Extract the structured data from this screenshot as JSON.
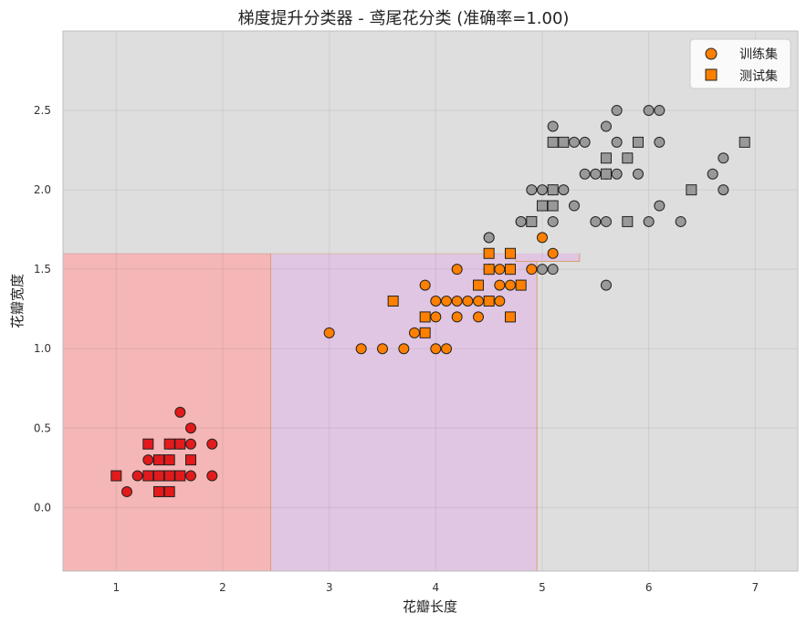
{
  "chart_data": {
    "type": "scatter",
    "title": "梯度提升分类器 - 鸢尾花分类 (准确率=1.00)",
    "xlabel": "花瓣长度",
    "ylabel": "花瓣宽度",
    "xlim": [
      0.5,
      7.4
    ],
    "ylim": [
      -0.4,
      3.0
    ],
    "xticks": [
      "1",
      "2",
      "3",
      "4",
      "5",
      "6",
      "7"
    ],
    "yticks": [
      "0.0",
      "0.5",
      "1.0",
      "1.5",
      "2.0",
      "2.5"
    ],
    "grid": true,
    "legend_position": "top-right",
    "legend": [
      {
        "label": "训练集",
        "marker": "circle"
      },
      {
        "label": "测试集",
        "marker": "square"
      }
    ],
    "class_colors": {
      "setosa": "#e31a1c",
      "versicolor": "#ff7f00",
      "virginica": "#999999"
    },
    "decision_regions": [
      {
        "class": "setosa",
        "x": [
          0.5,
          2.45
        ],
        "y": [
          -0.4,
          1.6
        ],
        "color": "#f4b6b6"
      },
      {
        "class": "versicolor",
        "x": [
          2.45,
          4.95
        ],
        "y": [
          -0.4,
          1.6
        ],
        "color": "#e0c6e2"
      },
      {
        "class": "versicolor",
        "x": [
          4.75,
          5.35
        ],
        "y": [
          1.55,
          1.75
        ],
        "color": "#e0c6e2"
      },
      {
        "class": "virginica",
        "x": [
          0.5,
          7.4
        ],
        "y": [
          1.6,
          3.0
        ],
        "color": "#dedede"
      }
    ],
    "series": [
      {
        "name": "训练集",
        "class": "setosa",
        "marker": "circle",
        "points": [
          [
            1.1,
            0.1
          ],
          [
            1.2,
            0.2
          ],
          [
            1.3,
            0.3
          ],
          [
            1.3,
            0.2
          ],
          [
            1.4,
            0.2
          ],
          [
            1.4,
            0.3
          ],
          [
            1.5,
            0.2
          ],
          [
            1.5,
            0.4
          ],
          [
            1.5,
            0.1
          ],
          [
            1.6,
            0.6
          ],
          [
            1.6,
            0.2
          ],
          [
            1.6,
            0.4
          ],
          [
            1.7,
            0.5
          ],
          [
            1.7,
            0.4
          ],
          [
            1.7,
            0.2
          ],
          [
            1.9,
            0.4
          ],
          [
            1.9,
            0.2
          ],
          [
            1.5,
            0.3
          ],
          [
            1.4,
            0.1
          ]
        ]
      },
      {
        "name": "测试集",
        "class": "setosa",
        "marker": "square",
        "points": [
          [
            1.0,
            0.2
          ],
          [
            1.3,
            0.4
          ],
          [
            1.3,
            0.2
          ],
          [
            1.4,
            0.1
          ],
          [
            1.4,
            0.3
          ],
          [
            1.4,
            0.2
          ],
          [
            1.5,
            0.4
          ],
          [
            1.5,
            0.1
          ],
          [
            1.5,
            0.2
          ],
          [
            1.5,
            0.3
          ],
          [
            1.6,
            0.4
          ],
          [
            1.6,
            0.2
          ],
          [
            1.7,
            0.3
          ]
        ]
      },
      {
        "name": "训练集",
        "class": "versicolor",
        "marker": "circle",
        "points": [
          [
            3.0,
            1.1
          ],
          [
            3.3,
            1.0
          ],
          [
            3.5,
            1.0
          ],
          [
            3.7,
            1.0
          ],
          [
            3.8,
            1.1
          ],
          [
            3.9,
            1.4
          ],
          [
            4.0,
            1.3
          ],
          [
            4.0,
            1.2
          ],
          [
            4.0,
            1.0
          ],
          [
            4.1,
            1.0
          ],
          [
            4.1,
            1.3
          ],
          [
            4.2,
            1.3
          ],
          [
            4.2,
            1.2
          ],
          [
            4.2,
            1.5
          ],
          [
            4.3,
            1.3
          ],
          [
            4.4,
            1.4
          ],
          [
            4.4,
            1.2
          ],
          [
            4.4,
            1.3
          ],
          [
            4.5,
            1.5
          ],
          [
            4.5,
            1.3
          ],
          [
            4.5,
            1.7
          ],
          [
            4.6,
            1.5
          ],
          [
            4.6,
            1.4
          ],
          [
            4.6,
            1.3
          ],
          [
            4.7,
            1.5
          ],
          [
            4.7,
            1.4
          ],
          [
            4.8,
            1.4
          ],
          [
            4.8,
            1.8
          ],
          [
            4.9,
            1.5
          ],
          [
            5.0,
            1.7
          ],
          [
            5.1,
            1.6
          ]
        ]
      },
      {
        "name": "测试集",
        "class": "versicolor",
        "marker": "square",
        "points": [
          [
            3.6,
            1.3
          ],
          [
            3.9,
            1.2
          ],
          [
            3.9,
            1.1
          ],
          [
            4.4,
            1.4
          ],
          [
            4.5,
            1.5
          ],
          [
            4.5,
            1.3
          ],
          [
            4.5,
            1.6
          ],
          [
            4.7,
            1.6
          ],
          [
            4.7,
            1.5
          ],
          [
            4.7,
            1.2
          ],
          [
            4.8,
            1.4
          ]
        ]
      },
      {
        "name": "训练集",
        "class": "virginica",
        "marker": "circle",
        "points": [
          [
            4.5,
            1.7
          ],
          [
            4.8,
            1.8
          ],
          [
            4.9,
            2.0
          ],
          [
            4.9,
            1.8
          ],
          [
            5.0,
            2.0
          ],
          [
            5.0,
            1.5
          ],
          [
            5.1,
            2.4
          ],
          [
            5.1,
            2.0
          ],
          [
            5.1,
            1.8
          ],
          [
            5.1,
            1.5
          ],
          [
            5.2,
            2.0
          ],
          [
            5.3,
            2.3
          ],
          [
            5.3,
            1.9
          ],
          [
            5.4,
            2.3
          ],
          [
            5.4,
            2.1
          ],
          [
            5.5,
            2.1
          ],
          [
            5.5,
            1.8
          ],
          [
            5.6,
            2.4
          ],
          [
            5.6,
            2.1
          ],
          [
            5.6,
            1.8
          ],
          [
            5.6,
            1.4
          ],
          [
            5.7,
            2.5
          ],
          [
            5.7,
            2.3
          ],
          [
            5.7,
            2.1
          ],
          [
            5.8,
            2.2
          ],
          [
            5.9,
            2.1
          ],
          [
            6.0,
            2.5
          ],
          [
            6.0,
            1.8
          ],
          [
            6.1,
            2.5
          ],
          [
            6.1,
            2.3
          ],
          [
            6.1,
            1.9
          ],
          [
            6.3,
            1.8
          ],
          [
            6.6,
            2.1
          ],
          [
            6.7,
            2.2
          ],
          [
            6.7,
            2.0
          ]
        ]
      },
      {
        "name": "测试集",
        "class": "virginica",
        "marker": "square",
        "points": [
          [
            4.9,
            1.8
          ],
          [
            5.0,
            1.9
          ],
          [
            5.1,
            2.3
          ],
          [
            5.1,
            1.9
          ],
          [
            5.1,
            2.0
          ],
          [
            5.2,
            2.3
          ],
          [
            5.6,
            2.2
          ],
          [
            5.6,
            2.1
          ],
          [
            5.8,
            2.2
          ],
          [
            5.8,
            1.8
          ],
          [
            5.9,
            2.3
          ],
          [
            6.4,
            2.0
          ],
          [
            6.9,
            2.3
          ]
        ]
      }
    ]
  }
}
